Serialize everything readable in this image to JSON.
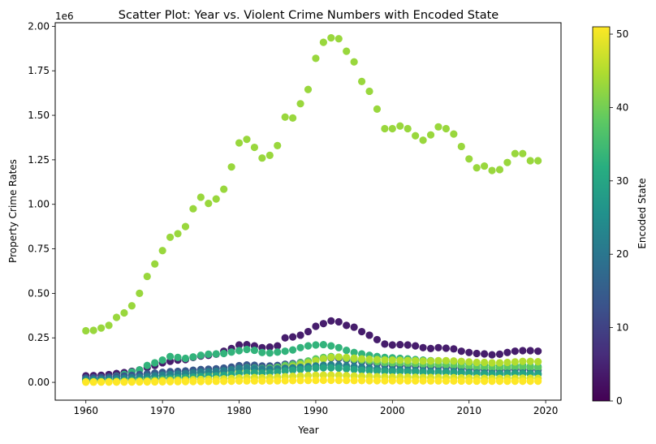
{
  "chart_data": {
    "type": "scatter",
    "title": "Scatter Plot: Year vs. Violent Crime Numbers with Encoded State",
    "xlabel": "Year",
    "ylabel": "Property Crime Rates",
    "y_offset_label": "1e6",
    "xlim": [
      1956,
      2022
    ],
    "ylim": [
      -100000,
      2020000
    ],
    "x_ticks": [
      1960,
      1970,
      1980,
      1990,
      2000,
      2010,
      2020
    ],
    "x_tick_labels": [
      "1960",
      "1970",
      "1980",
      "1990",
      "2000",
      "2010",
      "2020"
    ],
    "y_ticks": [
      0,
      250000,
      500000,
      750000,
      1000000,
      1250000,
      1500000,
      1750000,
      2000000
    ],
    "y_tick_labels": [
      "0.00",
      "0.25",
      "0.50",
      "0.75",
      "1.00",
      "1.25",
      "1.50",
      "1.75",
      "2.00"
    ],
    "grid": false,
    "colorbar": {
      "label": "Encoded State",
      "colormap": "viridis",
      "range": [
        0,
        51
      ],
      "ticks": [
        0,
        10,
        20,
        30,
        40,
        50
      ],
      "tick_labels": [
        "0",
        "10",
        "20",
        "30",
        "40",
        "50"
      ]
    },
    "year_start": 1960,
    "year_end": 2019,
    "series": [
      {
        "state_code": 43,
        "values": [
          290000,
          292000,
          305000,
          320000,
          365000,
          390000,
          430000,
          500000,
          595000,
          665000,
          740000,
          815000,
          835000,
          875000,
          975000,
          1040000,
          1005000,
          1030000,
          1085000,
          1210000,
          1345000,
          1365000,
          1320000,
          1260000,
          1275000,
          1330000,
          1490000,
          1485000,
          1565000,
          1645000,
          1820000,
          1910000,
          1935000,
          1930000,
          1860000,
          1800000,
          1690000,
          1635000,
          1535000,
          1425000,
          1425000,
          1440000,
          1425000,
          1385000,
          1360000,
          1390000,
          1435000,
          1425000,
          1395000,
          1325000,
          1255000,
          1205000,
          1215000,
          1190000,
          1195000,
          1235000,
          1285000,
          1285000,
          1245000,
          1245000
        ]
      },
      {
        "state_code": 4,
        "values": [
          37000,
          38000,
          40000,
          44000,
          50000,
          55000,
          62000,
          70000,
          83000,
          95000,
          110000,
          118000,
          125000,
          128000,
          140000,
          148000,
          152000,
          158000,
          175000,
          190000,
          210000,
          212000,
          205000,
          195000,
          198000,
          205000,
          250000,
          255000,
          265000,
          285000,
          315000,
          330000,
          345000,
          340000,
          320000,
          310000,
          285000,
          265000,
          240000,
          215000,
          210000,
          212000,
          210000,
          205000,
          195000,
          190000,
          195000,
          192000,
          188000,
          175000,
          168000,
          162000,
          160000,
          155000,
          158000,
          168000,
          175000,
          178000,
          178000,
          175000
        ]
      },
      {
        "state_code": 33,
        "values": [
          18000,
          20000,
          23000,
          28000,
          35000,
          45000,
          58000,
          70000,
          95000,
          110000,
          125000,
          145000,
          140000,
          135000,
          143000,
          152000,
          158000,
          160000,
          162000,
          170000,
          178000,
          185000,
          180000,
          168000,
          165000,
          170000,
          175000,
          182000,
          195000,
          205000,
          210000,
          212000,
          205000,
          195000,
          180000,
          168000,
          160000,
          152000,
          145000,
          140000,
          138000,
          135000,
          132000,
          128000,
          125000,
          122000,
          120000,
          118000,
          115000,
          110000,
          105000,
          100000,
          98000,
          95000,
          92000,
          92000,
          95000,
          95000,
          90000,
          88000
        ]
      },
      {
        "state_code": 14,
        "values": [
          25000,
          26000,
          28000,
          30000,
          33000,
          36000,
          40000,
          44000,
          48000,
          52000,
          56000,
          60000,
          62000,
          64000,
          68000,
          72000,
          74000,
          76000,
          80000,
          86000,
          94000,
          98000,
          96000,
          92000,
          92000,
          95000,
          102000,
          106000,
          112000,
          118000,
          126000,
          132000,
          136000,
          134000,
          128000,
          122000,
          116000,
          110000,
          104000,
          98000,
          96000,
          96000,
          94000,
          92000,
          90000,
          88000,
          88000,
          86000,
          84000,
          80000,
          76000,
          74000,
          72000,
          70000,
          70000,
          72000,
          74000,
          74000,
          72000,
          70000
        ]
      },
      {
        "state_code": 38,
        "values": [
          12000,
          13000,
          14000,
          16000,
          18000,
          20000,
          23000,
          26000,
          30000,
          34000,
          38000,
          42000,
          45000,
          48000,
          52000,
          56000,
          58000,
          60000,
          64000,
          70000,
          78000,
          82000,
          80000,
          78000,
          80000,
          85000,
          95000,
          100000,
          110000,
          120000,
          132000,
          140000,
          145000,
          142000,
          135000,
          130000,
          125000,
          120000,
          115000,
          110000,
          108000,
          108000,
          106000,
          104000,
          102000,
          100000,
          100000,
          98000,
          96000,
          92000,
          88000,
          85000,
          84000,
          82000,
          82000,
          84000,
          86000,
          86000,
          84000,
          82000
        ]
      },
      {
        "state_code": 45,
        "values": [
          8000,
          8500,
          9000,
          10000,
          11500,
          13000,
          15000,
          17000,
          20000,
          23000,
          26000,
          30000,
          33000,
          36000,
          40000,
          44000,
          47000,
          50000,
          54000,
          60000,
          66000,
          70000,
          70000,
          68000,
          70000,
          74000,
          84000,
          90000,
          100000,
          110000,
          122000,
          132000,
          140000,
          142000,
          140000,
          136000,
          132000,
          130000,
          128000,
          126000,
          125000,
          124000,
          123000,
          122000,
          120000,
          120000,
          122000,
          122000,
          120000,
          118000,
          115000,
          112000,
          112000,
          110000,
          110000,
          112000,
          115000,
          118000,
          118000,
          116000
        ]
      },
      {
        "state_code": 22,
        "values": [
          15000,
          16000,
          17000,
          19000,
          21000,
          23000,
          26000,
          29000,
          33000,
          37000,
          41000,
          45000,
          47000,
          49000,
          53000,
          57000,
          59000,
          61000,
          65000,
          70000,
          78000,
          80000,
          78000,
          75000,
          74000,
          76000,
          80000,
          82000,
          85000,
          88000,
          92000,
          96000,
          98000,
          96000,
          92000,
          88000,
          84000,
          80000,
          76000,
          72000,
          70000,
          70000,
          68000,
          66000,
          64000,
          62000,
          62000,
          61000,
          60000,
          58000,
          55000,
          53000,
          52000,
          50000,
          50000,
          51000,
          52000,
          52000,
          50000,
          49000
        ]
      },
      {
        "state_code": 30,
        "values": [
          6000,
          6500,
          7000,
          8000,
          9000,
          10000,
          11500,
          13000,
          15000,
          17000,
          20000,
          23000,
          25000,
          27000,
          30000,
          33000,
          35000,
          37000,
          40000,
          44000,
          50000,
          54000,
          54000,
          52000,
          54000,
          58000,
          64000,
          68000,
          72000,
          76000,
          80000,
          82000,
          82000,
          80000,
          76000,
          72000,
          68000,
          66000,
          64000,
          62000,
          61000,
          60000,
          59000,
          58000,
          56000,
          55000,
          55000,
          54000,
          53000,
          51000,
          49000,
          47000,
          46000,
          45000,
          45000,
          46000,
          47000,
          47000,
          46000,
          45000
        ]
      },
      {
        "state_code": 48,
        "values": [
          3000,
          3200,
          3500,
          4000,
          4500,
          5000,
          5800,
          6500,
          7500,
          8500,
          10000,
          11500,
          12500,
          13500,
          15000,
          16500,
          17500,
          18500,
          20000,
          22000,
          25000,
          27000,
          27000,
          26000,
          27000,
          29000,
          32000,
          34000,
          36000,
          38000,
          40000,
          41000,
          41000,
          40000,
          38000,
          36000,
          34000,
          33000,
          32000,
          31000,
          30000,
          30000,
          29500,
          29000,
          28000,
          27500,
          27500,
          27000,
          26500,
          25500,
          24500,
          23500,
          23000,
          22500,
          22500,
          23000,
          23500,
          23500,
          23000,
          22500
        ]
      },
      {
        "state_code": 51,
        "values": [
          1000,
          1100,
          1200,
          1300,
          1500,
          1700,
          1900,
          2200,
          2500,
          2800,
          3200,
          3600,
          4000,
          4300,
          4700,
          5100,
          5400,
          5700,
          6100,
          6700,
          7500,
          8000,
          8000,
          7800,
          8000,
          8500,
          9300,
          9800,
          10300,
          10800,
          11300,
          11600,
          11600,
          11300,
          10800,
          10300,
          9800,
          9500,
          9200,
          8900,
          8700,
          8600,
          8500,
          8300,
          8100,
          7900,
          7900,
          7800,
          7600,
          7300,
          7000,
          6800,
          6600,
          6500,
          6500,
          6600,
          6700,
          6700,
          6600,
          6500
        ]
      }
    ]
  }
}
